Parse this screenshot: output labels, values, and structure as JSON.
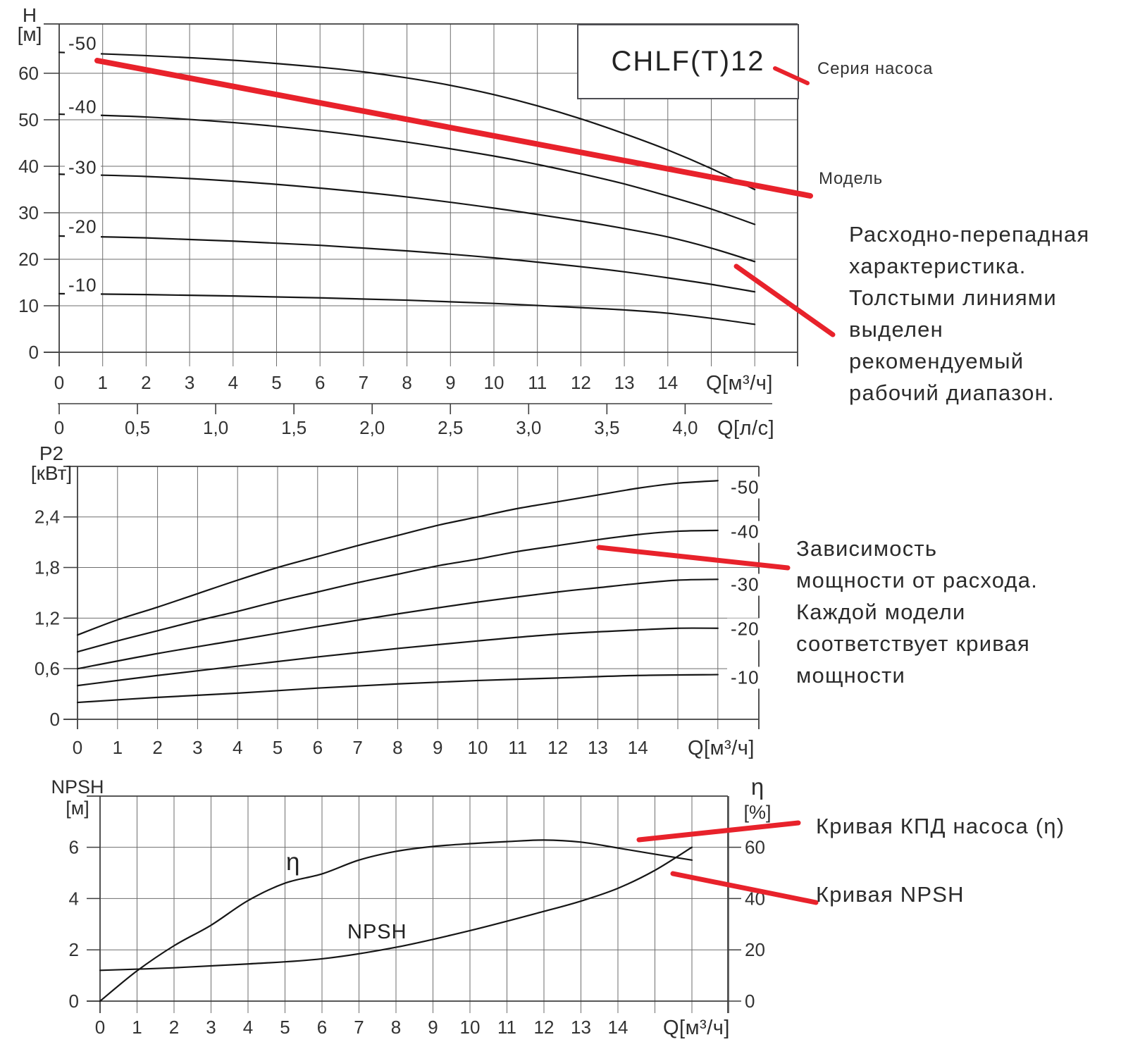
{
  "colors": {
    "red": "#e8222b",
    "curve": "#161616",
    "grid": "#6e6e6e",
    "axis": "#3f3f3f",
    "text": "#2e2e2e",
    "box_border": "#4d4d52"
  },
  "header": {
    "series_box_label": "CHLF(T)12"
  },
  "annotations": {
    "series_label": "Серия насоса",
    "model_label": "Модель",
    "flow_note": "Расходно-перепадная\nхарактеристика.\nТолстыми линиями\nвыделен\nрекомендуемый\nрабочий диапазон.",
    "power_note": "Зависимость\nмощности от расхода.\nКаждой модели\nсоответствует кривая\nмощности",
    "efficiency_note": "Кривая КПД насоса (η)",
    "npsh_note": "Кривая NPSH"
  },
  "chart_data": [
    {
      "type": "line",
      "title": "Head vs flow characteristic",
      "ylabel": "H",
      "ylabel_unit": "[м]",
      "xlabel": "Q[м³/ч]",
      "x2label": "Q[л/с]",
      "xlim": [
        0,
        17
      ],
      "ylim": [
        0,
        70
      ],
      "grid": true,
      "x_tick_labels": [
        "0",
        "1",
        "2",
        "3",
        "4",
        "5",
        "6",
        "7",
        "8",
        "9",
        "10",
        "11",
        "12",
        "13",
        "14"
      ],
      "y_tick_values": [
        0,
        10,
        20,
        30,
        40,
        50,
        60
      ],
      "y_tick_labels": [
        "0",
        "10",
        "20",
        "30",
        "40",
        "50",
        "60"
      ],
      "x2_tick_values": [
        0,
        0.5,
        1,
        1.5,
        2,
        2.5,
        3,
        3.5,
        4
      ],
      "x2_tick_labels": [
        "0",
        "0,5",
        "1,0",
        "1,5",
        "2,0",
        "2,5",
        "3,0",
        "3,5",
        "4,0"
      ],
      "series": [
        {
          "name": "-50",
          "points": [
            [
              0,
              64.5
            ],
            [
              2,
              63.8
            ],
            [
              4,
              62.8
            ],
            [
              6,
              61.3
            ],
            [
              7,
              60.3
            ],
            [
              8,
              59.0
            ],
            [
              9,
              57.4
            ],
            [
              10,
              55.4
            ],
            [
              11,
              53.0
            ],
            [
              12,
              50.2
            ],
            [
              13,
              47.0
            ],
            [
              14,
              43.5
            ],
            [
              15,
              39.5
            ],
            [
              16,
              35.0
            ]
          ]
        },
        {
          "name": "-40",
          "points": [
            [
              0,
              51.2
            ],
            [
              2,
              50.6
            ],
            [
              4,
              49.4
            ],
            [
              6,
              47.6
            ],
            [
              8,
              45.2
            ],
            [
              10,
              42.2
            ],
            [
              11,
              40.4
            ],
            [
              12,
              38.4
            ],
            [
              13,
              36.2
            ],
            [
              14,
              33.6
            ],
            [
              15,
              30.8
            ],
            [
              16,
              27.5
            ]
          ]
        },
        {
          "name": "-30",
          "points": [
            [
              0,
              38.3
            ],
            [
              2,
              37.8
            ],
            [
              4,
              36.8
            ],
            [
              6,
              35.3
            ],
            [
              8,
              33.4
            ],
            [
              10,
              31.0
            ],
            [
              12,
              28.2
            ],
            [
              13,
              26.6
            ],
            [
              14,
              24.8
            ],
            [
              15,
              22.4
            ],
            [
              16,
              19.5
            ]
          ]
        },
        {
          "name": "-20",
          "points": [
            [
              0,
              25.0
            ],
            [
              2,
              24.6
            ],
            [
              4,
              23.9
            ],
            [
              6,
              23.0
            ],
            [
              8,
              21.8
            ],
            [
              10,
              20.3
            ],
            [
              12,
              18.4
            ],
            [
              13,
              17.3
            ],
            [
              14,
              16.0
            ],
            [
              15,
              14.6
            ],
            [
              16,
              13.0
            ]
          ]
        },
        {
          "name": "-10",
          "points": [
            [
              0,
              12.6
            ],
            [
              2,
              12.4
            ],
            [
              4,
              12.1
            ],
            [
              6,
              11.7
            ],
            [
              8,
              11.2
            ],
            [
              10,
              10.5
            ],
            [
              12,
              9.6
            ],
            [
              13,
              9.1
            ],
            [
              14,
              8.4
            ],
            [
              15,
              7.3
            ],
            [
              16,
              6.0
            ]
          ]
        }
      ]
    },
    {
      "type": "line",
      "title": "Shaft power vs flow",
      "ylabel": "P2",
      "ylabel_unit": "[кВт]",
      "xlabel": "Q[м³/ч]",
      "xlim": [
        0,
        17
      ],
      "ylim": [
        0,
        3
      ],
      "grid": true,
      "x_tick_labels": [
        "0",
        "1",
        "2",
        "3",
        "4",
        "5",
        "6",
        "7",
        "8",
        "9",
        "10",
        "11",
        "12",
        "13",
        "14"
      ],
      "y_tick_values": [
        0,
        0.6,
        1.2,
        1.8,
        2.4
      ],
      "y_tick_labels": [
        "0",
        "0,6",
        "1,2",
        "1,8",
        "2,4"
      ],
      "series": [
        {
          "name": "-50",
          "points": [
            [
              0,
              1.0
            ],
            [
              1,
              1.18
            ],
            [
              2,
              1.33
            ],
            [
              3,
              1.49
            ],
            [
              4,
              1.65
            ],
            [
              5,
              1.8
            ],
            [
              6,
              1.93
            ],
            [
              7,
              2.06
            ],
            [
              8,
              2.18
            ],
            [
              9,
              2.3
            ],
            [
              10,
              2.4
            ],
            [
              11,
              2.5
            ],
            [
              12,
              2.58
            ],
            [
              13,
              2.66
            ],
            [
              14,
              2.74
            ],
            [
              15,
              2.8
            ],
            [
              16,
              2.83
            ]
          ]
        },
        {
          "name": "-40",
          "points": [
            [
              0,
              0.8
            ],
            [
              1,
              0.93
            ],
            [
              2,
              1.05
            ],
            [
              3,
              1.17
            ],
            [
              4,
              1.28
            ],
            [
              5,
              1.4
            ],
            [
              6,
              1.51
            ],
            [
              7,
              1.62
            ],
            [
              8,
              1.72
            ],
            [
              9,
              1.82
            ],
            [
              10,
              1.9
            ],
            [
              11,
              1.99
            ],
            [
              12,
              2.06
            ],
            [
              13,
              2.13
            ],
            [
              14,
              2.19
            ],
            [
              15,
              2.23
            ],
            [
              16,
              2.24
            ]
          ]
        },
        {
          "name": "-30",
          "points": [
            [
              0,
              0.6
            ],
            [
              2,
              0.78
            ],
            [
              4,
              0.94
            ],
            [
              6,
              1.1
            ],
            [
              8,
              1.25
            ],
            [
              10,
              1.39
            ],
            [
              12,
              1.51
            ],
            [
              13,
              1.56
            ],
            [
              14,
              1.61
            ],
            [
              15,
              1.65
            ],
            [
              16,
              1.66
            ]
          ]
        },
        {
          "name": "-20",
          "points": [
            [
              0,
              0.4
            ],
            [
              2,
              0.52
            ],
            [
              4,
              0.63
            ],
            [
              6,
              0.74
            ],
            [
              8,
              0.84
            ],
            [
              10,
              0.93
            ],
            [
              12,
              1.01
            ],
            [
              14,
              1.06
            ],
            [
              15,
              1.08
            ],
            [
              16,
              1.08
            ]
          ]
        },
        {
          "name": "-10",
          "points": [
            [
              0,
              0.2
            ],
            [
              2,
              0.26
            ],
            [
              4,
              0.31
            ],
            [
              6,
              0.37
            ],
            [
              8,
              0.42
            ],
            [
              10,
              0.46
            ],
            [
              12,
              0.49
            ],
            [
              14,
              0.52
            ],
            [
              16,
              0.53
            ]
          ]
        }
      ]
    },
    {
      "type": "line",
      "title": "NPSH and efficiency vs flow",
      "ylabel": "NPSH",
      "ylabel_unit": "[м]",
      "y2label": "η",
      "y2label_unit": "[%]",
      "xlabel": "Q[м³/ч]",
      "xlim": [
        0,
        17
      ],
      "ylim": [
        0,
        8
      ],
      "y2lim": [
        0,
        80
      ],
      "grid": true,
      "x_tick_labels": [
        "0",
        "1",
        "2",
        "3",
        "4",
        "5",
        "6",
        "7",
        "8",
        "9",
        "10",
        "11",
        "12",
        "13",
        "14"
      ],
      "y_tick_values": [
        0,
        2,
        4,
        6
      ],
      "y_tick_labels": [
        "0",
        "2",
        "4",
        "6"
      ],
      "y2_tick_labels": [
        "0",
        "20",
        "40",
        "60"
      ],
      "series": [
        {
          "name": "η",
          "axis": "right",
          "unit": "%",
          "points": [
            [
              0,
              0
            ],
            [
              1,
              11.8
            ],
            [
              2,
              21.6
            ],
            [
              3,
              29.6
            ],
            [
              4,
              39.2
            ],
            [
              5,
              46
            ],
            [
              6,
              49.6
            ],
            [
              7,
              55
            ],
            [
              8,
              58.4
            ],
            [
              9,
              60.3
            ],
            [
              10,
              61.4
            ],
            [
              11,
              62.2
            ],
            [
              12,
              62.8
            ],
            [
              13,
              62
            ],
            [
              14,
              59.7
            ],
            [
              15,
              57.3
            ],
            [
              16,
              55
            ]
          ]
        },
        {
          "name": "NPSH",
          "axis": "left",
          "unit": "м",
          "points": [
            [
              0,
              1.2
            ],
            [
              2,
              1.3
            ],
            [
              4,
              1.45
            ],
            [
              6,
              1.65
            ],
            [
              8,
              2.1
            ],
            [
              10,
              2.75
            ],
            [
              12,
              3.5
            ],
            [
              13,
              3.9
            ],
            [
              14,
              4.4
            ],
            [
              15,
              5.1
            ],
            [
              16,
              6.0
            ]
          ]
        }
      ]
    }
  ]
}
